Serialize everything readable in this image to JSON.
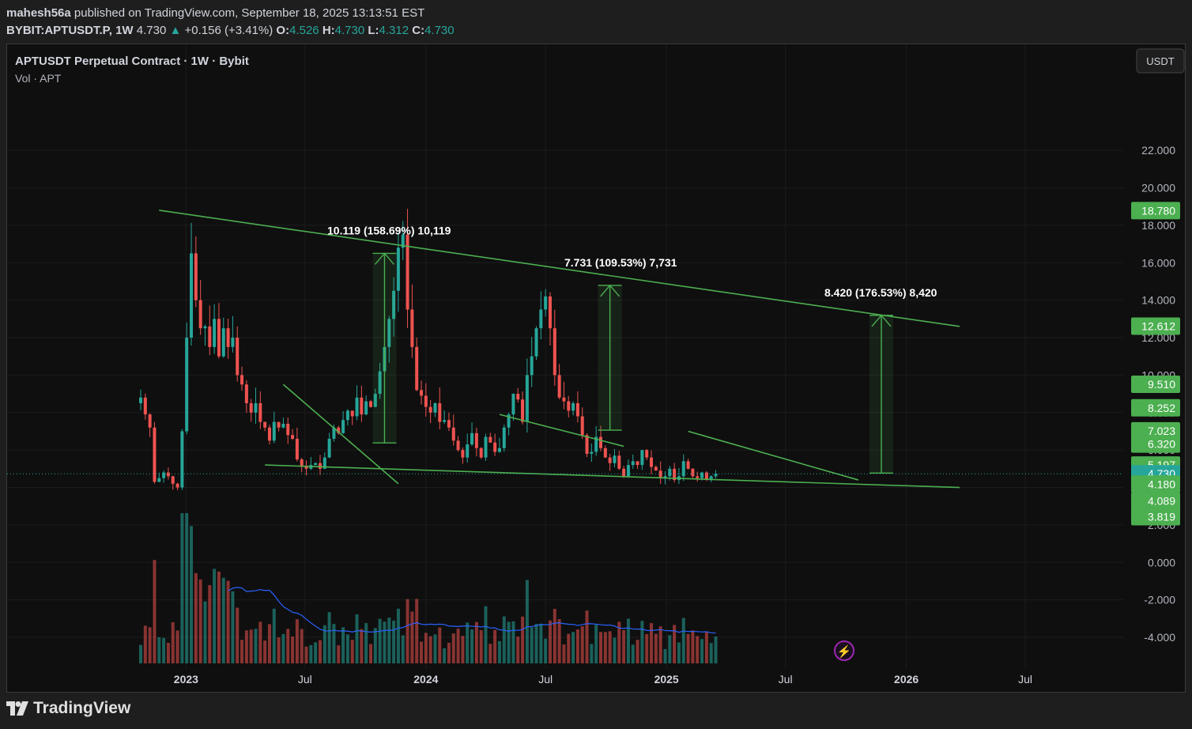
{
  "header": {
    "author": "mahesh56a",
    "published_text": "published on TradingView.com, September 18, 2025 13:13:51 EST",
    "symbol": "BYBIT:APTUSDT.P, 1W",
    "last": "4.730",
    "change": "+0.156 (+3.41%)",
    "o_label": "O:",
    "o": "4.526",
    "h_label": "H:",
    "h": "4.730",
    "l_label": "L:",
    "l": "4.312",
    "c_label": "C:",
    "c": "4.730"
  },
  "legend": {
    "title": "APTUSDT Perpetual Contract · 1W · Bybit",
    "volume_label": "Vol · APT",
    "currency_button": "USDT"
  },
  "footer": {
    "brand": "TradingView"
  },
  "colors": {
    "up": "#26a69a",
    "down": "#ef5350",
    "trend": "#4caf50",
    "vol_ma": "#2962ff",
    "background": "#0f0f0f"
  },
  "chart_data": {
    "type": "candlestick",
    "timeframe": "1W",
    "ylim": [
      -4.8,
      24.2
    ],
    "y_ticks": [
      22,
      20,
      18,
      16,
      14,
      12,
      10,
      8,
      6,
      4,
      2,
      0,
      -2,
      -4
    ],
    "y_tick_labels": [
      "22.000",
      "20.000",
      "18.000",
      "16.000",
      "14.000",
      "12.000",
      "10.000",
      "8.000",
      "6.000",
      "4.000",
      "2.000",
      "0.000",
      "-2.000",
      "-4.000"
    ],
    "x_labels": [
      {
        "label": "2023",
        "x": "2023-01-01"
      },
      {
        "label": "Jul",
        "x": "2023-07-01"
      },
      {
        "label": "2024",
        "x": "2024-01-01"
      },
      {
        "label": "Jul",
        "x": "2024-07-01"
      },
      {
        "label": "2025",
        "x": "2025-01-01"
      },
      {
        "label": "Jul",
        "x": "2025-07-01"
      },
      {
        "label": "2026",
        "x": "2026-01-01"
      },
      {
        "label": "Jul",
        "x": "2026-07-01"
      }
    ],
    "first_candle": "2022-10-24",
    "last_price": 4.73,
    "closes": [
      8.8,
      7.9,
      7.2,
      4.3,
      4.5,
      4.8,
      4.6,
      4.2,
      4.0,
      7.0,
      12.0,
      16.5,
      14.0,
      12.5,
      12.6,
      11.5,
      13.0,
      11.0,
      12.5,
      11.5,
      12.0,
      10.0,
      9.5,
      8.5,
      8.0,
      8.5,
      7.5,
      7.2,
      6.5,
      7.5,
      7.2,
      7.4,
      6.8,
      6.6,
      5.5,
      5.1,
      5.0,
      5.2,
      5.3,
      5.0,
      5.6,
      6.6,
      7.2,
      6.9,
      7.6,
      8.1,
      7.8,
      8.8,
      7.9,
      8.6,
      8.3,
      9.0,
      10.2,
      11.5,
      13.0,
      14.5,
      16.8,
      17.5,
      13.5,
      11.5,
      9.2,
      8.9,
      8.3,
      8.0,
      8.5,
      7.5,
      7.6,
      7.2,
      6.5,
      6.0,
      5.6,
      6.3,
      6.9,
      6.1,
      5.6,
      6.7,
      6.4,
      5.9,
      6.1,
      7.2,
      7.9,
      9.0,
      8.7,
      7.5,
      10.0,
      11.0,
      12.5,
      13.5,
      14.2,
      12.5,
      10.0,
      8.8,
      8.6,
      8.1,
      8.5,
      7.8,
      6.8,
      5.8,
      5.9,
      6.7,
      6.1,
      5.6,
      5.3,
      5.7,
      5.0,
      4.6,
      5.2,
      5.4,
      5.2,
      6.0,
      5.6,
      5.1,
      4.9,
      4.5,
      4.6,
      5.0,
      4.4,
      4.6,
      5.4,
      5.0,
      4.6,
      4.5,
      4.8,
      4.4,
      4.6,
      4.73
    ],
    "trendlines": [
      {
        "name": "upper-resistance",
        "from": {
          "x": "2022-11-21",
          "y": 18.8
        },
        "to": {
          "x": "2026-03-23",
          "y": 12.6
        }
      },
      {
        "name": "lower-support",
        "from": {
          "x": "2023-05-01",
          "y": 5.2
        },
        "to": {
          "x": "2026-03-23",
          "y": 4.0
        }
      },
      {
        "name": "wedge-1",
        "from": {
          "x": "2023-05-29",
          "y": 9.5
        },
        "to": {
          "x": "2023-11-20",
          "y": 4.2
        }
      },
      {
        "name": "wedge-2",
        "from": {
          "x": "2024-04-22",
          "y": 7.9
        },
        "to": {
          "x": "2024-10-28",
          "y": 6.2
        }
      },
      {
        "name": "wedge-3",
        "from": {
          "x": "2025-02-03",
          "y": 7.0
        },
        "to": {
          "x": "2025-10-20",
          "y": 4.4
        }
      }
    ],
    "projections": [
      {
        "label": "10.119 (158.69%) 10,119",
        "base": 6.38,
        "target": 16.5,
        "x": "2023-10-30"
      },
      {
        "label": "7.731 (109.53%) 7,731",
        "base": 7.06,
        "target": 14.79,
        "x": "2024-10-07"
      },
      {
        "label": "8.420 (176.53%) 8,420",
        "base": 4.77,
        "target": 13.19,
        "x": "2025-11-24"
      }
    ],
    "price_tags": [
      {
        "value": "18.780",
        "y": 18.78
      },
      {
        "value": "12.612",
        "y": 12.612
      },
      {
        "value": "9.510",
        "y": 9.51
      },
      {
        "value": "8.252",
        "y": 8.252
      },
      {
        "value": "7.023",
        "y": 7.023
      },
      {
        "value": "6.320",
        "y": 6.32
      },
      {
        "value": "5.197",
        "y": 5.197
      },
      {
        "value": "4.730",
        "y": 4.73,
        "current": true
      },
      {
        "value": "4.180",
        "y": 4.18
      },
      {
        "value": "4.089",
        "y": 3.28
      },
      {
        "value": "3.819",
        "y": 2.44
      }
    ]
  }
}
